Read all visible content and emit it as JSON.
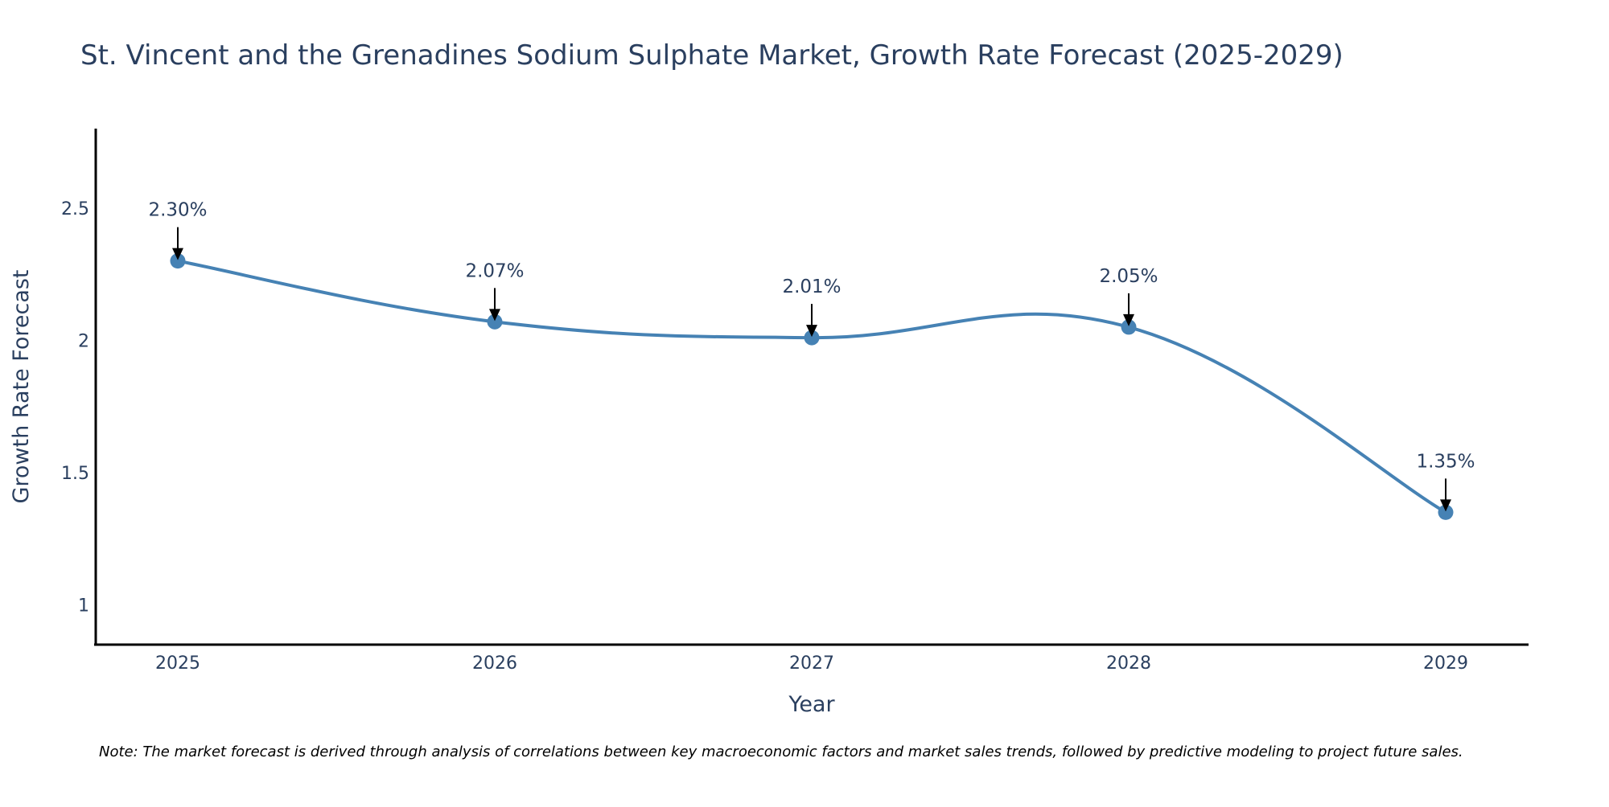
{
  "chart_data": {
    "type": "line",
    "title": "St. Vincent and the Grenadines Sodium Sulphate Market, Growth Rate Forecast (2025-2029)",
    "xlabel": "Year",
    "ylabel": "Growth Rate Forecast",
    "categories": [
      "2025",
      "2026",
      "2027",
      "2028",
      "2029"
    ],
    "series": [
      {
        "name": "Growth Rate Forecast",
        "values": [
          2.3,
          2.07,
          2.01,
          2.05,
          1.35
        ],
        "data_labels": [
          "2.30%",
          "2.07%",
          "2.01%",
          "2.05%",
          "1.35%"
        ]
      }
    ],
    "ylim": [
      0.85,
      2.8
    ],
    "yticks": [
      1,
      1.5,
      2,
      2.5
    ],
    "ytick_labels": [
      "1",
      "1.5",
      "2",
      "2.5"
    ],
    "grid": false,
    "line_color": "#4682b4",
    "marker_color": "#4682b4",
    "arrow_color": "#000000",
    "note": "Note: The market forecast is derived through analysis of correlations between key macroeconomic factors and market sales trends, followed by predictive modeling to project future sales."
  }
}
